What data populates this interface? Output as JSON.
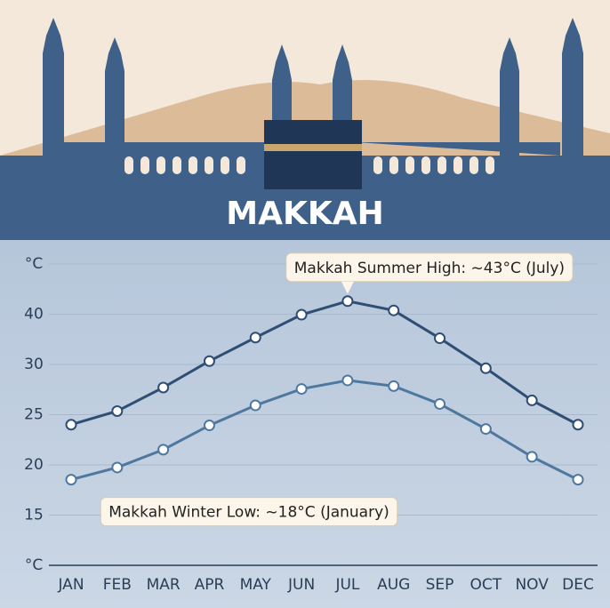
{
  "chart_data": {
    "type": "line",
    "title": "MAKKAH",
    "categories": [
      "JAN",
      "FEB",
      "MAR",
      "APR",
      "MAY",
      "JUN",
      "JUL",
      "AUG",
      "SEP",
      "OCT",
      "NOV",
      "DEC"
    ],
    "series": [
      {
        "color": "#2f4e74",
        "values": [
          25.7,
          27.6,
          30.9,
          34.6,
          37.9,
          41.1,
          43,
          41.7,
          37.8,
          33.6,
          29.1,
          25.7
        ]
      },
      {
        "color": "#4f789f",
        "values": [
          18,
          19.7,
          22.2,
          25.6,
          28.4,
          30.7,
          31.9,
          31.1,
          28.6,
          25.1,
          21.2,
          18
        ]
      }
    ],
    "ylim": [
      6,
      48.2
    ],
    "y_axis_labels": [
      "°C",
      "40",
      "30",
      "25",
      "20",
      "15",
      "°C"
    ],
    "annotations": [
      {
        "text": "Makkah Summer High: ~43°C (July)",
        "series": 0,
        "index": 6
      },
      {
        "text": "Makkah Winter Low: ~18°C (January)",
        "series": 1,
        "index": 0
      }
    ]
  }
}
